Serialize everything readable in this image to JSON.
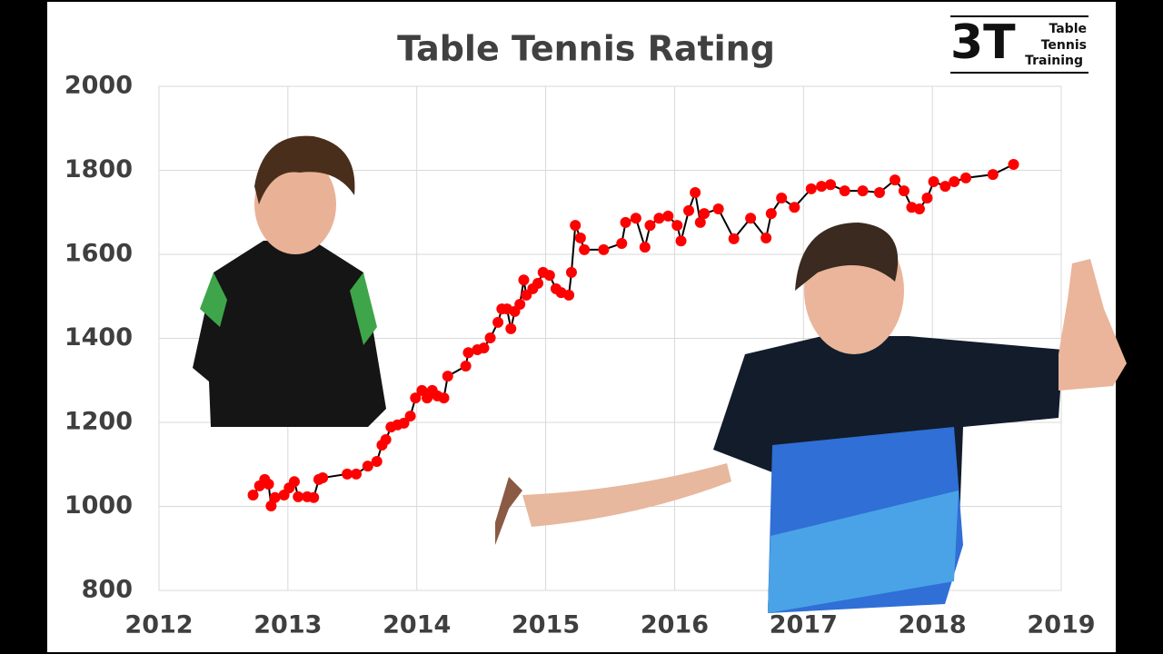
{
  "chart_data": {
    "type": "line",
    "title": "Table Tennis Rating",
    "x": [
      2012.73,
      2012.78,
      2012.82,
      2012.85,
      2012.87,
      2012.9,
      2012.97,
      2013.01,
      2013.05,
      2013.08,
      2013.15,
      2013.2,
      2013.24,
      2013.27,
      2013.46,
      2013.53,
      2013.62,
      2013.69,
      2013.73,
      2013.76,
      2013.8,
      2013.85,
      2013.9,
      2013.95,
      2013.99,
      2014.04,
      2014.08,
      2014.12,
      2014.16,
      2014.21,
      2014.24,
      2014.38,
      2014.4,
      2014.47,
      2014.52,
      2014.57,
      2014.63,
      2014.66,
      2014.7,
      2014.73,
      2014.76,
      2014.8,
      2014.83,
      2014.85,
      2014.9,
      2014.94,
      2014.98,
      2015.03,
      2015.08,
      2015.12,
      2015.18,
      2015.2,
      2015.23,
      2015.27,
      2015.3,
      2015.45,
      2015.59,
      2015.62,
      2015.7,
      2015.77,
      2015.81,
      2015.88,
      2015.95,
      2016.02,
      2016.05,
      2016.11,
      2016.16,
      2016.2,
      2016.23,
      2016.34,
      2016.46,
      2016.59,
      2016.71,
      2016.75,
      2016.83,
      2016.93,
      2017.06,
      2017.14,
      2017.21,
      2017.32,
      2017.46,
      2017.59,
      2017.71,
      2017.78,
      2017.84,
      2017.9,
      2017.96,
      2018.01,
      2018.1,
      2018.17,
      2018.26,
      2018.47,
      2018.63
    ],
    "series": [
      {
        "color": "#ff0000",
        "line_color": "#000000",
        "values": [
          1027,
          1049,
          1064,
          1053,
          1001,
          1021,
          1027,
          1044,
          1059,
          1023,
          1023,
          1021,
          1064,
          1068,
          1077,
          1077,
          1096,
          1107,
          1146,
          1159,
          1189,
          1194,
          1198,
          1215,
          1258,
          1276,
          1258,
          1276,
          1263,
          1258,
          1310,
          1334,
          1366,
          1373,
          1377,
          1401,
          1438,
          1470,
          1470,
          1423,
          1464,
          1481,
          1539,
          1503,
          1518,
          1531,
          1557,
          1550,
          1518,
          1509,
          1503,
          1557,
          1669,
          1639,
          1611,
          1611,
          1626,
          1676,
          1686,
          1617,
          1669,
          1686,
          1691,
          1669,
          1632,
          1704,
          1747,
          1676,
          1697,
          1708,
          1637,
          1686,
          1639,
          1697,
          1734,
          1712,
          1756,
          1762,
          1766,
          1751,
          1751,
          1747,
          1777,
          1751,
          1712,
          1708,
          1734,
          1773,
          1762,
          1773,
          1782,
          1790,
          1814
        ]
      }
    ],
    "xlim": [
      2012,
      2019
    ],
    "xticks": [
      2012,
      2013,
      2014,
      2015,
      2016,
      2017,
      2018,
      2019
    ],
    "ylim": [
      800,
      2000
    ],
    "yticks": [
      800,
      1000,
      1200,
      1400,
      1600,
      1800,
      2000
    ],
    "grid": true
  },
  "logo": {
    "mark": "3T",
    "lines": [
      "Table",
      "Tennis",
      "Training"
    ]
  }
}
